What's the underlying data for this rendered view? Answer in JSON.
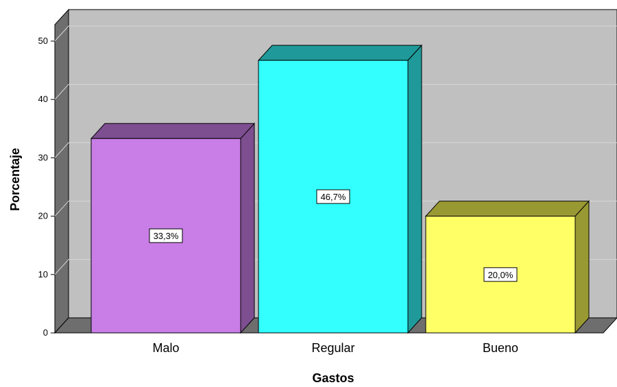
{
  "chart_data": {
    "type": "bar",
    "three_d": true,
    "categories": [
      "Malo",
      "Regular",
      "Bueno"
    ],
    "values": [
      33.3,
      46.7,
      20.0
    ],
    "data_labels": [
      "33,3%",
      "46,7%",
      "20,0%"
    ],
    "xlabel": "Gastos",
    "ylabel": "Porcentaje",
    "ylim": [
      0,
      50
    ],
    "yticks": [
      0,
      10,
      20,
      30,
      40,
      50
    ],
    "grid": true,
    "legend": "none",
    "colors": {
      "bars": [
        "#c87ee6",
        "#33ffff",
        "#ffff66"
      ],
      "bar_sides": [
        "#7d4e90",
        "#1f9999",
        "#999933"
      ],
      "bar_tops": [
        "#7d4e90",
        "#1f9999",
        "#999933"
      ],
      "wall": "#c0c0c0",
      "side_wall": "#6e6e6e",
      "floor": "#6e6e6e",
      "gridline": "#d8d8d8",
      "label_box": "#ffffff"
    }
  }
}
